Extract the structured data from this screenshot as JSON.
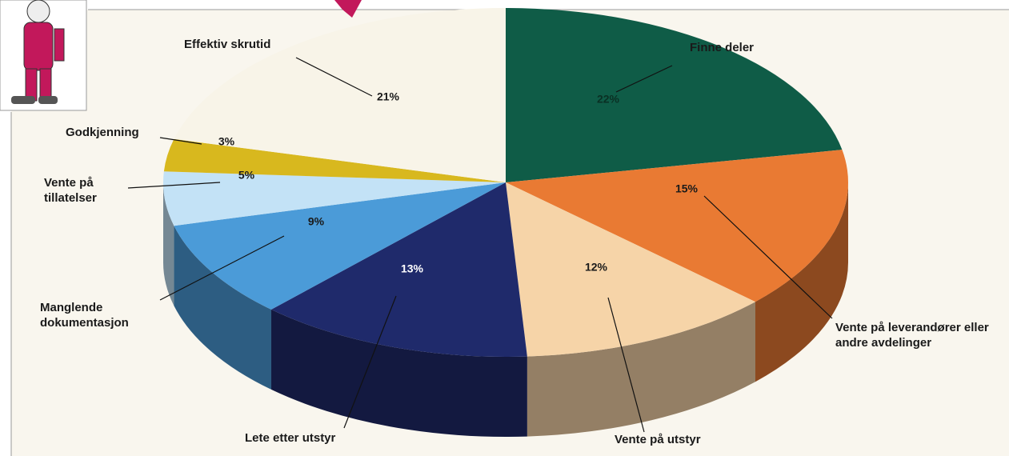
{
  "chart_data": {
    "type": "pie",
    "categories": [
      "Finne deler",
      "Vente på leverandører eller andre avdelinger",
      "Vente på utstyr",
      "Lete etter utstyr",
      "Manglende dokumentasjon",
      "Vente på tillatelser",
      "Godkjenning",
      "Effektiv skrutid"
    ],
    "values": [
      22,
      15,
      12,
      13,
      9,
      5,
      3,
      21
    ],
    "value_labels": [
      "22%",
      "15%",
      "12%",
      "13%",
      "9%",
      "5%",
      "3%",
      "21%"
    ],
    "colors": [
      "#0f5c47",
      "#e97a33",
      "#f6d4a8",
      "#1f2a6b",
      "#4b9bd8",
      "#c3e2f6",
      "#d8b81e",
      "#f8f4e8"
    ]
  }
}
